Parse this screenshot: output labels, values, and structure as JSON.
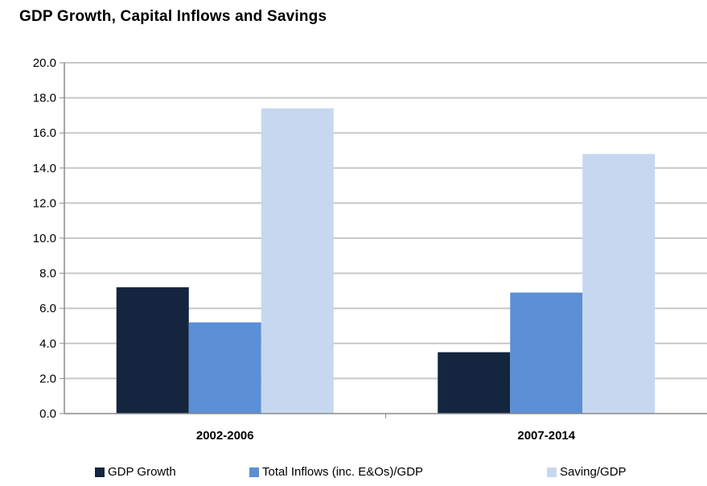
{
  "chart_data": {
    "type": "bar",
    "title": "GDP Growth, Capital Inflows  and Savings",
    "categories": [
      "2002-2006",
      "2007-2014"
    ],
    "series": [
      {
        "name": "GDP Growth",
        "color": "#13253f",
        "values": [
          7.2,
          3.5
        ]
      },
      {
        "name": "Total Inflows (inc. E&Os)/GDP",
        "color": "#5b8fd6",
        "values": [
          5.2,
          6.9
        ]
      },
      {
        "name": "Saving/GDP",
        "color": "#c6d8ef",
        "values": [
          17.4,
          14.8
        ]
      }
    ],
    "ylim": [
      0,
      20
    ],
    "yticks": [
      "0.0",
      "2.0",
      "4.0",
      "6.0",
      "8.0",
      "10.0",
      "12.0",
      "14.0",
      "16.0",
      "18.0",
      "20.0"
    ],
    "xlabel": "",
    "ylabel": "",
    "grid": true,
    "legend": "bottom",
    "colors": {
      "grid": "#c8c8c8",
      "axis": "#8a8a8a"
    }
  }
}
